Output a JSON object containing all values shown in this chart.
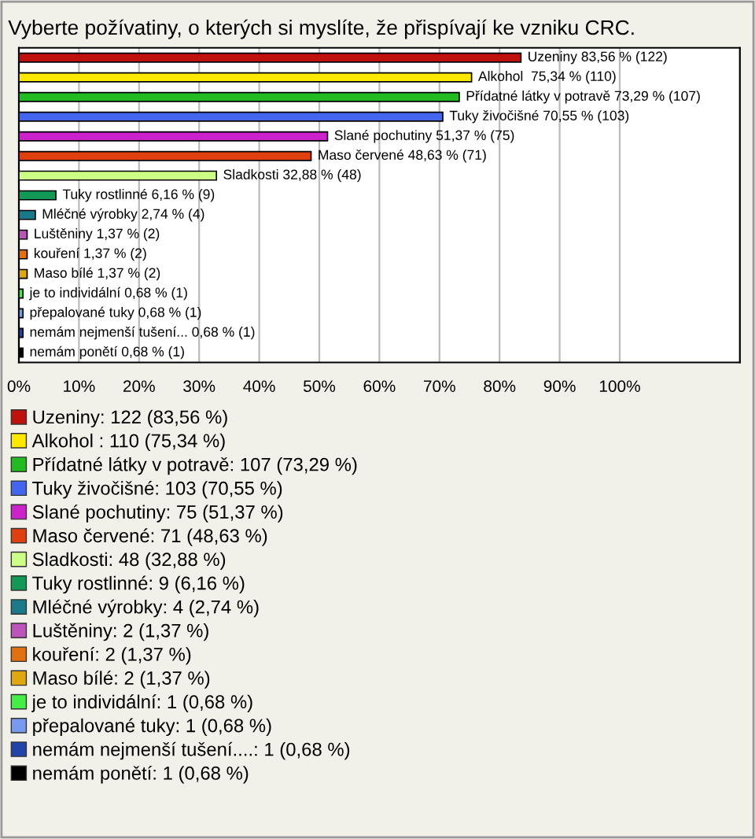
{
  "chart_data": {
    "type": "bar",
    "orientation": "horizontal",
    "title": "Vyberte požívatiny, o kterých si myslíte, že přispívají ke vzniku CRC.",
    "categories": [
      null,
      null,
      null,
      null,
      null,
      null,
      null,
      null,
      null,
      null,
      null,
      null,
      null,
      null,
      null,
      null
    ],
    "series": [
      {
        "name": "Uzeniny: 122 (83,56 %)",
        "color": "#c0120c",
        "values": [
          83.56,
          null,
          null,
          null,
          null,
          null,
          null,
          null,
          null,
          null,
          null,
          null,
          null,
          null,
          null,
          null
        ],
        "value_labels": [
          "Uzeniny 83,56 % (122)",
          null,
          null,
          null,
          null,
          null,
          null,
          null,
          null,
          null,
          null,
          null,
          null,
          null,
          null,
          null
        ]
      },
      {
        "name": "Alkohol : 110 (75,34 %)",
        "color": "#ffe800",
        "values": [
          null,
          75.34,
          null,
          null,
          null,
          null,
          null,
          null,
          null,
          null,
          null,
          null,
          null,
          null,
          null,
          null
        ],
        "value_labels": [
          null,
          "Alkohol  75,34 % (110)",
          null,
          null,
          null,
          null,
          null,
          null,
          null,
          null,
          null,
          null,
          null,
          null,
          null,
          null
        ]
      },
      {
        "name": "Přídatné látky v potravě: 107 (73,29 %)",
        "color": "#22bb22",
        "values": [
          null,
          null,
          73.29,
          null,
          null,
          null,
          null,
          null,
          null,
          null,
          null,
          null,
          null,
          null,
          null,
          null
        ],
        "value_labels": [
          null,
          null,
          "Přídatné látky v potravě 73,29 % (107)",
          null,
          null,
          null,
          null,
          null,
          null,
          null,
          null,
          null,
          null,
          null,
          null,
          null
        ]
      },
      {
        "name": "Tuky živočišné: 103 (70,55 %)",
        "color": "#4466ee",
        "values": [
          null,
          null,
          null,
          70.55,
          null,
          null,
          null,
          null,
          null,
          null,
          null,
          null,
          null,
          null,
          null,
          null
        ],
        "value_labels": [
          null,
          null,
          null,
          "Tuky živočišné 70,55 % (103)",
          null,
          null,
          null,
          null,
          null,
          null,
          null,
          null,
          null,
          null,
          null,
          null
        ]
      },
      {
        "name": "Slané pochutiny: 75 (51,37 %)",
        "color": "#cc22cc",
        "values": [
          null,
          null,
          null,
          null,
          51.37,
          null,
          null,
          null,
          null,
          null,
          null,
          null,
          null,
          null,
          null,
          null
        ],
        "value_labels": [
          null,
          null,
          null,
          null,
          "Slané pochutiny 51,37 % (75)",
          null,
          null,
          null,
          null,
          null,
          null,
          null,
          null,
          null,
          null,
          null
        ]
      },
      {
        "name": "Maso červené: 71 (48,63 %)",
        "color": "#e04010",
        "values": [
          null,
          null,
          null,
          null,
          null,
          48.63,
          null,
          null,
          null,
          null,
          null,
          null,
          null,
          null,
          null,
          null
        ],
        "value_labels": [
          null,
          null,
          null,
          null,
          null,
          "Maso červené 48,63 % (71)",
          null,
          null,
          null,
          null,
          null,
          null,
          null,
          null,
          null,
          null
        ]
      },
      {
        "name": "Sladkosti: 48 (32,88 %)",
        "color": "#ccff88",
        "values": [
          null,
          null,
          null,
          null,
          null,
          null,
          32.88,
          null,
          null,
          null,
          null,
          null,
          null,
          null,
          null,
          null
        ],
        "value_labels": [
          null,
          null,
          null,
          null,
          null,
          null,
          "Sladkosti 32,88 % (48)",
          null,
          null,
          null,
          null,
          null,
          null,
          null,
          null,
          null
        ]
      },
      {
        "name": "Tuky rostlinné: 9 (6,16 %)",
        "color": "#119955",
        "values": [
          null,
          null,
          null,
          null,
          null,
          null,
          null,
          6.16,
          null,
          null,
          null,
          null,
          null,
          null,
          null,
          null
        ],
        "value_labels": [
          null,
          null,
          null,
          null,
          null,
          null,
          null,
          "Tuky rostlinné 6,16 % (9)",
          null,
          null,
          null,
          null,
          null,
          null,
          null,
          null
        ]
      },
      {
        "name": "Mléčné výrobky: 4 (2,74 %)",
        "color": "#1a7a8a",
        "values": [
          null,
          null,
          null,
          null,
          null,
          null,
          null,
          null,
          2.74,
          null,
          null,
          null,
          null,
          null,
          null,
          null
        ],
        "value_labels": [
          null,
          null,
          null,
          null,
          null,
          null,
          null,
          null,
          "Mléčné výrobky 2,74 % (4)",
          null,
          null,
          null,
          null,
          null,
          null,
          null
        ]
      },
      {
        "name": "Luštěniny: 2 (1,37 %)",
        "color": "#bb55bb",
        "values": [
          null,
          null,
          null,
          null,
          null,
          null,
          null,
          null,
          null,
          1.37,
          null,
          null,
          null,
          null,
          null,
          null
        ],
        "value_labels": [
          null,
          null,
          null,
          null,
          null,
          null,
          null,
          null,
          null,
          "Luštěniny 1,37 % (2)",
          null,
          null,
          null,
          null,
          null,
          null
        ]
      },
      {
        "name": "kouření: 2 (1,37 %)",
        "color": "#e07010",
        "values": [
          null,
          null,
          null,
          null,
          null,
          null,
          null,
          null,
          null,
          null,
          1.37,
          null,
          null,
          null,
          null,
          null
        ],
        "value_labels": [
          null,
          null,
          null,
          null,
          null,
          null,
          null,
          null,
          null,
          null,
          "kouření 1,37 % (2)",
          null,
          null,
          null,
          null,
          null
        ]
      },
      {
        "name": "Maso bílé: 2 (1,37 %)",
        "color": "#e0a810",
        "values": [
          null,
          null,
          null,
          null,
          null,
          null,
          null,
          null,
          null,
          null,
          null,
          1.37,
          null,
          null,
          null,
          null
        ],
        "value_labels": [
          null,
          null,
          null,
          null,
          null,
          null,
          null,
          null,
          null,
          null,
          null,
          "Maso bílé 1,37 % (2)",
          null,
          null,
          null,
          null
        ]
      },
      {
        "name": "je to individální: 1 (0,68 %)",
        "color": "#44ee44",
        "values": [
          null,
          null,
          null,
          null,
          null,
          null,
          null,
          null,
          null,
          null,
          null,
          null,
          0.68,
          null,
          null,
          null
        ],
        "value_labels": [
          null,
          null,
          null,
          null,
          null,
          null,
          null,
          null,
          null,
          null,
          null,
          null,
          "je to individální 0,68 % (1)",
          null,
          null,
          null
        ]
      },
      {
        "name": "přepalované tuky: 1 (0,68 %)",
        "color": "#7799ee",
        "values": [
          null,
          null,
          null,
          null,
          null,
          null,
          null,
          null,
          null,
          null,
          null,
          null,
          null,
          0.68,
          null,
          null
        ],
        "value_labels": [
          null,
          null,
          null,
          null,
          null,
          null,
          null,
          null,
          null,
          null,
          null,
          null,
          null,
          "přepalované tuky 0,68 % (1)",
          null,
          null
        ]
      },
      {
        "name": "nemám nejmenší tušení....: 1 (0,68 %)",
        "color": "#2244aa",
        "values": [
          null,
          null,
          null,
          null,
          null,
          null,
          null,
          null,
          null,
          null,
          null,
          null,
          null,
          null,
          0.68,
          null
        ],
        "value_labels": [
          null,
          null,
          null,
          null,
          null,
          null,
          null,
          null,
          null,
          null,
          null,
          null,
          null,
          null,
          "nemám nejmenší tušení... 0,68 % (1)",
          null
        ]
      },
      {
        "name": "nemám ponětí: 1 (0,68 %)",
        "color": "#000000",
        "values": [
          null,
          null,
          null,
          null,
          null,
          null,
          null,
          null,
          null,
          null,
          null,
          null,
          null,
          null,
          null,
          0.68
        ],
        "value_labels": [
          null,
          null,
          null,
          null,
          null,
          null,
          null,
          null,
          null,
          null,
          null,
          null,
          null,
          null,
          null,
          "nemám ponětí 0,68 % (1)"
        ]
      }
    ],
    "xlim": [
      0,
      120
    ],
    "xticks": [
      {
        "value": 0,
        "label": "0%"
      },
      {
        "value": 10,
        "label": "10%"
      },
      {
        "value": 20,
        "label": "20%"
      },
      {
        "value": 30,
        "label": "30%"
      },
      {
        "value": 40,
        "label": "40%"
      },
      {
        "value": 50,
        "label": "50%"
      },
      {
        "value": 60,
        "label": "60%"
      },
      {
        "value": 70,
        "label": "70%"
      },
      {
        "value": 80,
        "label": "80%"
      },
      {
        "value": 90,
        "label": "90%"
      },
      {
        "value": 100,
        "label": "100%"
      }
    ],
    "grid": "x",
    "legend": "bottom",
    "tick_labels": "x"
  }
}
